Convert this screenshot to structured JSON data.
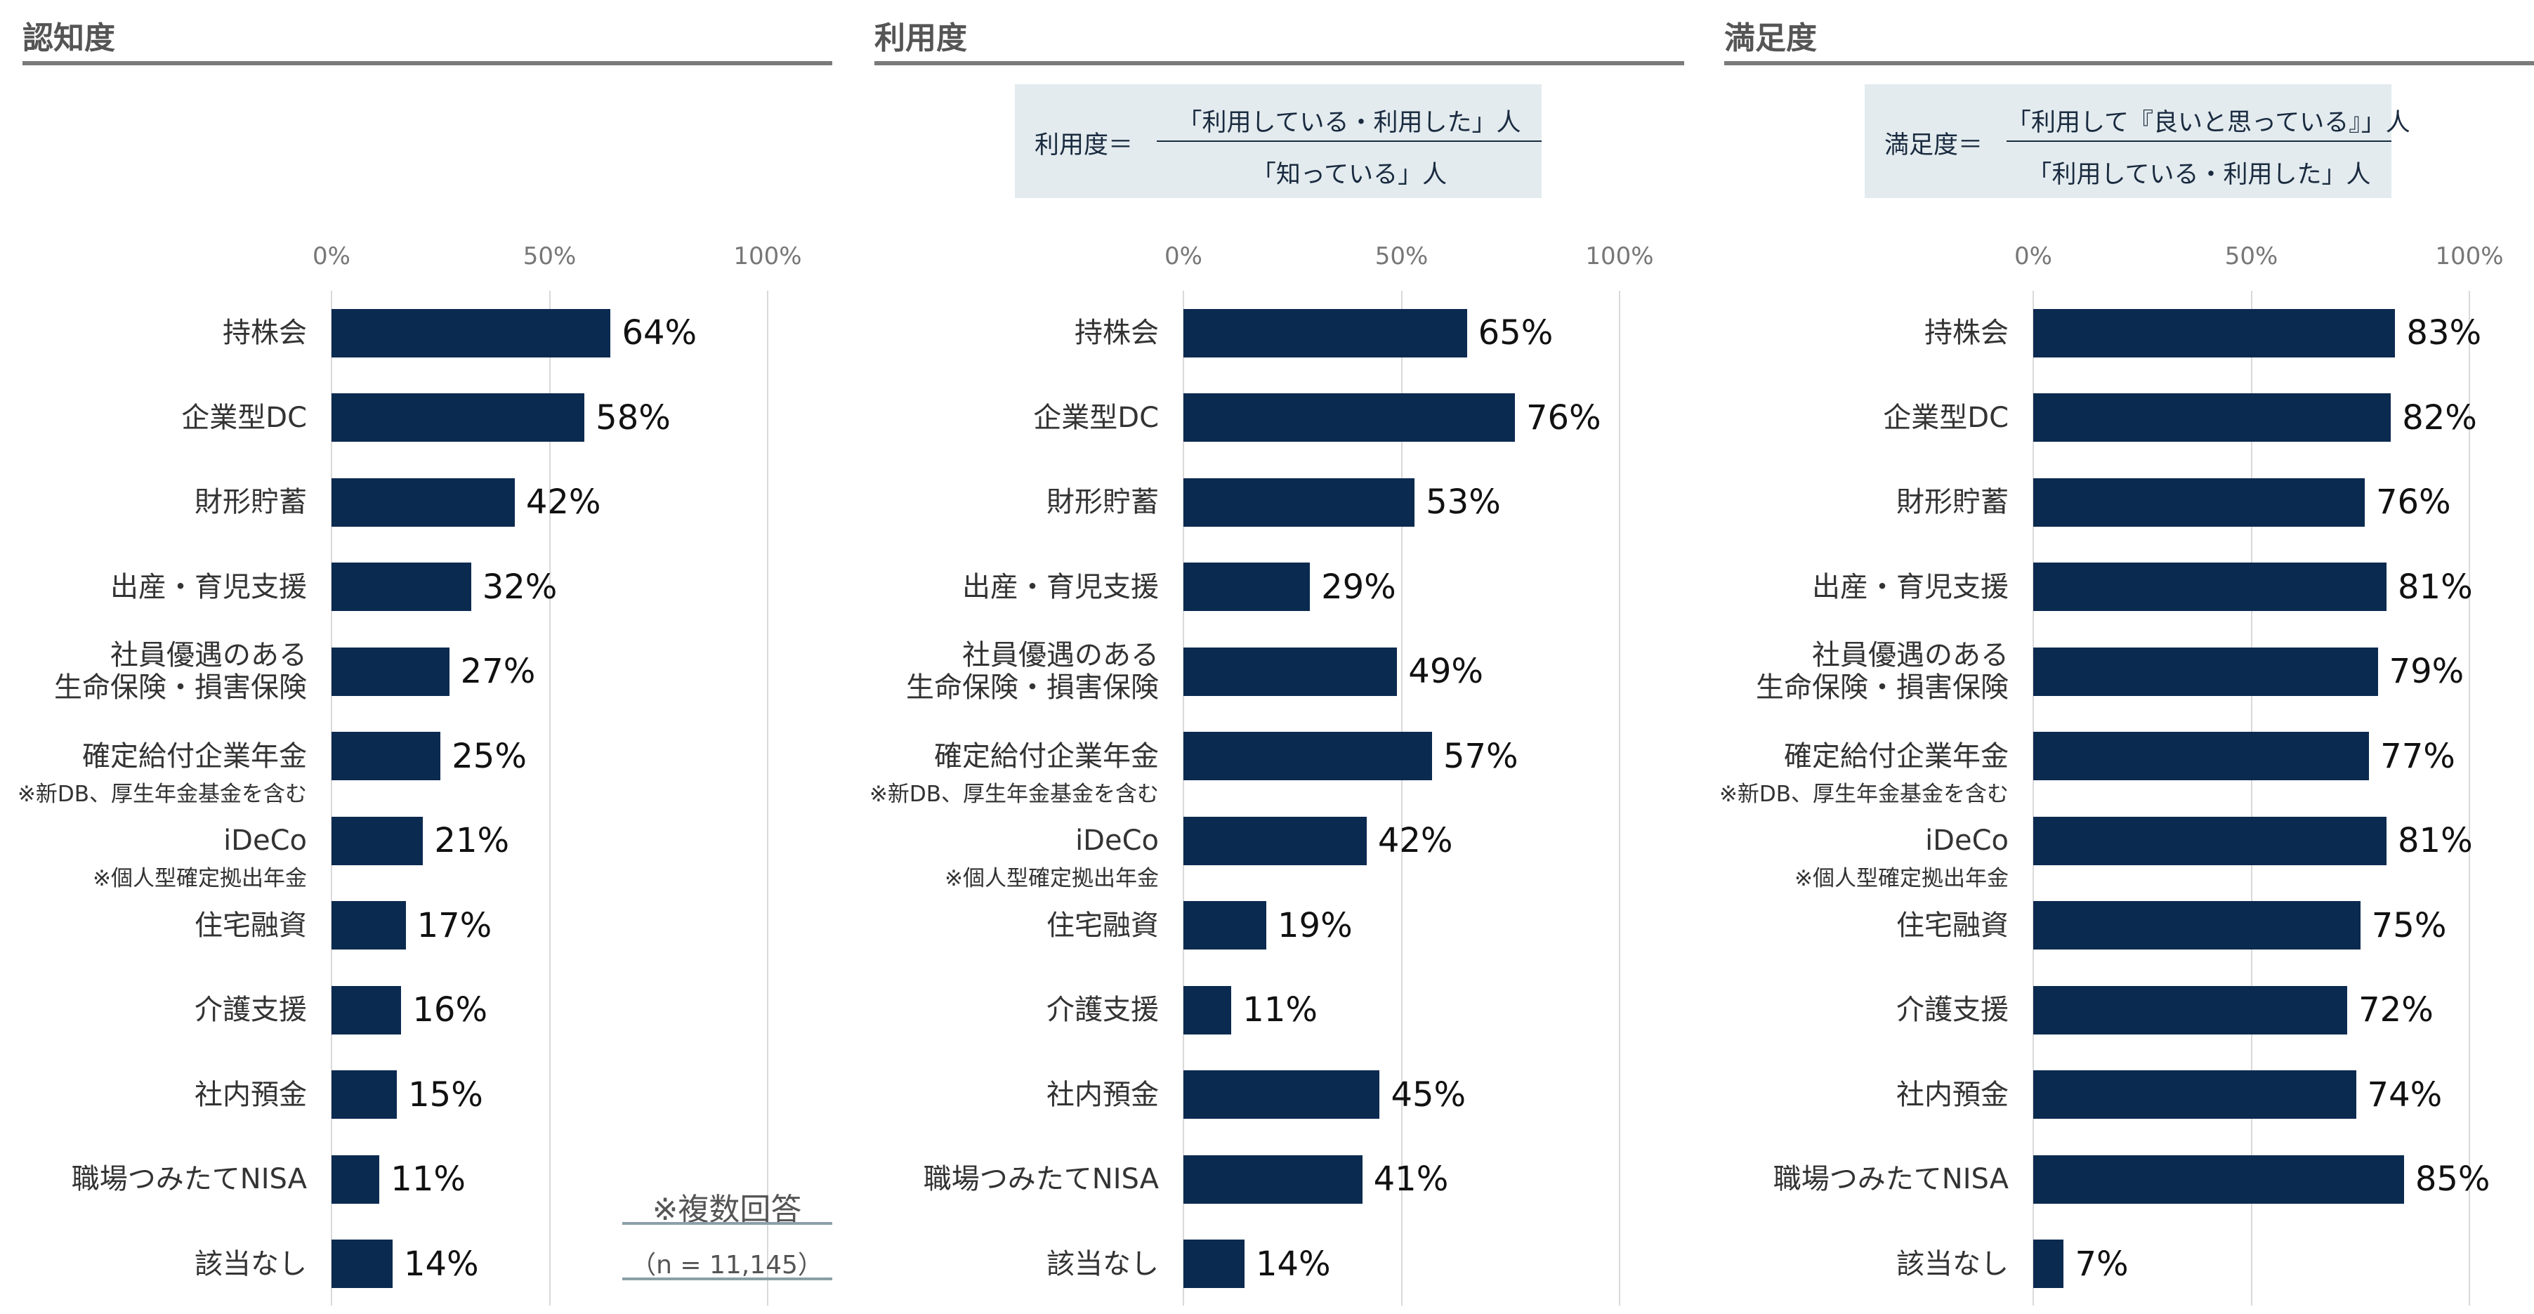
{
  "chart_data": [
    {
      "type": "bar",
      "title": "認知度",
      "categories": [
        "持株会",
        "企業型DC",
        "財形貯蓄",
        "出産・育児支援",
        "社員優遇のある\n生命保険・損害保険",
        "確定給付企業年金",
        "iDeCo",
        "住宅融資",
        "介護支援",
        "社内預金",
        "職場つみたてNISA",
        "該当なし"
      ],
      "category_notes": [
        null,
        null,
        null,
        null,
        null,
        "※新DB、厚生年金基金を含む",
        "※個人型確定拠出年金",
        null,
        null,
        null,
        null,
        null
      ],
      "values": [
        64,
        58,
        42,
        32,
        27,
        25,
        21,
        17,
        16,
        15,
        11,
        14
      ],
      "value_labels": [
        "64%",
        "58%",
        "42%",
        "32%",
        "27%",
        "25%",
        "21%",
        "17%",
        "16%",
        "15%",
        "11%",
        "14%"
      ],
      "xlim": [
        0,
        100
      ],
      "xticks": [
        {
          "value": 0,
          "label": "0%"
        },
        {
          "value": 50,
          "label": "50%"
        },
        {
          "value": 100,
          "label": "100%"
        }
      ],
      "grid": true,
      "color": "#0b2a50",
      "note": "※複数回答",
      "sample": "（n = 11,145）"
    },
    {
      "type": "bar",
      "title": "利用度",
      "formula": {
        "label": "利用度＝",
        "numerator": "「利用している・利用した」人",
        "denominator": "「知っている」人"
      },
      "categories": [
        "持株会",
        "企業型DC",
        "財形貯蓄",
        "出産・育児支援",
        "社員優遇のある\n生命保険・損害保険",
        "確定給付企業年金",
        "iDeCo",
        "住宅融資",
        "介護支援",
        "社内預金",
        "職場つみたてNISA",
        "該当なし"
      ],
      "category_notes": [
        null,
        null,
        null,
        null,
        null,
        "※新DB、厚生年金基金を含む",
        "※個人型確定拠出年金",
        null,
        null,
        null,
        null,
        null
      ],
      "values": [
        65,
        76,
        53,
        29,
        49,
        57,
        42,
        19,
        11,
        45,
        41,
        14
      ],
      "value_labels": [
        "65%",
        "76%",
        "53%",
        "29%",
        "49%",
        "57%",
        "42%",
        "19%",
        "11%",
        "45%",
        "41%",
        "14%"
      ],
      "xlim": [
        0,
        100
      ],
      "xticks": [
        {
          "value": 0,
          "label": "0%"
        },
        {
          "value": 50,
          "label": "50%"
        },
        {
          "value": 100,
          "label": "100%"
        }
      ],
      "grid": true,
      "color": "#0b2a50"
    },
    {
      "type": "bar",
      "title": "満足度",
      "formula": {
        "label": "満足度＝",
        "numerator": "「利用して『良いと思っている』」人",
        "denominator": "「利用している・利用した」人"
      },
      "categories": [
        "持株会",
        "企業型DC",
        "財形貯蓄",
        "出産・育児支援",
        "社員優遇のある\n生命保険・損害保険",
        "確定給付企業年金",
        "iDeCo",
        "住宅融資",
        "介護支援",
        "社内預金",
        "職場つみたてNISA",
        "該当なし"
      ],
      "category_notes": [
        null,
        null,
        null,
        null,
        null,
        "※新DB、厚生年金基金を含む",
        "※個人型確定拠出年金",
        null,
        null,
        null,
        null,
        null
      ],
      "values": [
        83,
        82,
        76,
        81,
        79,
        77,
        81,
        75,
        72,
        74,
        85,
        7
      ],
      "value_labels": [
        "83%",
        "82%",
        "76%",
        "81%",
        "79%",
        "77%",
        "81%",
        "75%",
        "72%",
        "74%",
        "85%",
        "7%"
      ],
      "xlim": [
        0,
        100
      ],
      "xticks": [
        {
          "value": 0,
          "label": "0%"
        },
        {
          "value": 50,
          "label": "50%"
        },
        {
          "value": 100,
          "label": "100%"
        }
      ],
      "grid": true,
      "color": "#0b2a50"
    }
  ]
}
